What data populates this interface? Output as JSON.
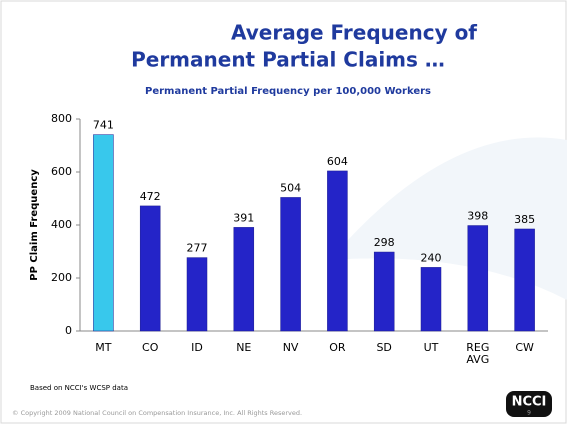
{
  "chart_data": {
    "type": "bar",
    "title_lines": [
      "Average Frequency of",
      "Permanent Partial Claims …"
    ],
    "subtitle": "Permanent Partial Frequency per 100,000 Workers",
    "ylabel": "PP Claim Frequency",
    "categories": [
      "MT",
      "CO",
      "ID",
      "NE",
      "NV",
      "OR",
      "SD",
      "UT",
      "REG AVG",
      "CW"
    ],
    "values": [
      741,
      472,
      277,
      391,
      504,
      604,
      298,
      240,
      398,
      385
    ],
    "colors": [
      "#38c8ec",
      "#2424c8",
      "#2424c8",
      "#2424c8",
      "#2424c8",
      "#2424c8",
      "#2424c8",
      "#2424c8",
      "#2424c8",
      "#2424c8"
    ],
    "ylim": [
      0,
      800
    ],
    "yticks": [
      0,
      200,
      400,
      600,
      800
    ],
    "grid": false,
    "footnote": "Based on NCCI's WCSP data",
    "copyright": "© Copyright 2009 National Council on Compensation Insurance, Inc. All Rights Reserved.",
    "logo": "NCCI",
    "page_number": 9
  }
}
